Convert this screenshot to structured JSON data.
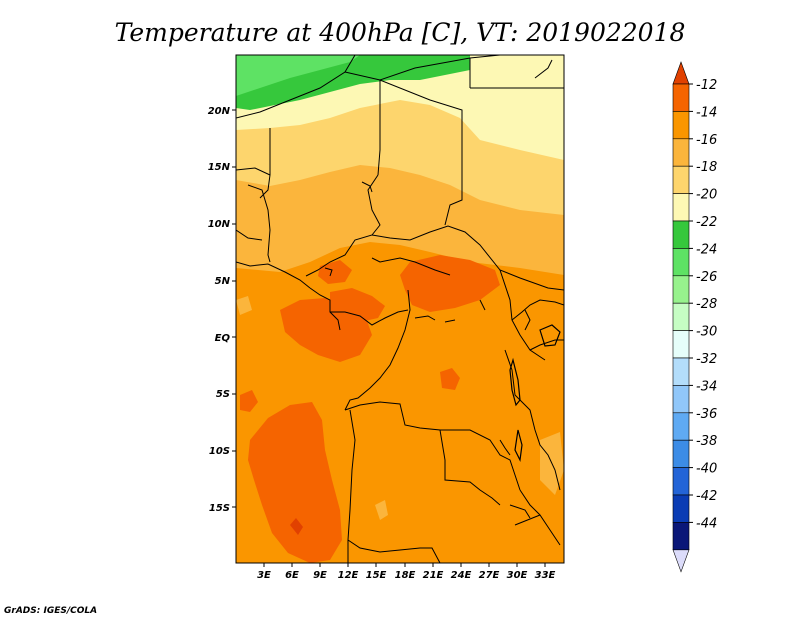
{
  "title": "Temperature at 400hPa [C], VT: 2019022018",
  "credit": "GrADS: IGES/COLA",
  "lat_labels": [
    "20N",
    "15N",
    "10N",
    "5N",
    "EQ",
    "5S",
    "10S",
    "15S"
  ],
  "lon_labels": [
    "3E",
    "6E",
    "9E",
    "12E",
    "15E",
    "18E",
    "21E",
    "24E",
    "27E",
    "30E",
    "33E"
  ],
  "colorbar": {
    "labels": [
      "-12",
      "-14",
      "-16",
      "-18",
      "-20",
      "-22",
      "-24",
      "-26",
      "-28",
      "-30",
      "-32",
      "-34",
      "-36",
      "-38",
      "-40",
      "-42",
      "-44"
    ],
    "colors": [
      "#e14100",
      "#f56400",
      "#fa9600",
      "#fbb53c",
      "#fdd56d",
      "#fdf8b4",
      "#36c83c",
      "#5ee264",
      "#97f28d",
      "#c6fdc4",
      "#e6fefa",
      "#b3ddfb",
      "#91c7f9",
      "#5faaf3",
      "#3c8ce6",
      "#2364d7",
      "#0a3cb4",
      "#0a1778",
      "#dcdcfa"
    ]
  },
  "colors": {
    "green_dark": "#36c83c",
    "green_mid": "#5ee264",
    "yellow_pale": "#fdf8b4",
    "yellow": "#fdd56d",
    "orange_light": "#fbb53c",
    "orange": "#fa9600",
    "orange_dark": "#f56400",
    "red_orange": "#e14100",
    "border": "#000000"
  }
}
